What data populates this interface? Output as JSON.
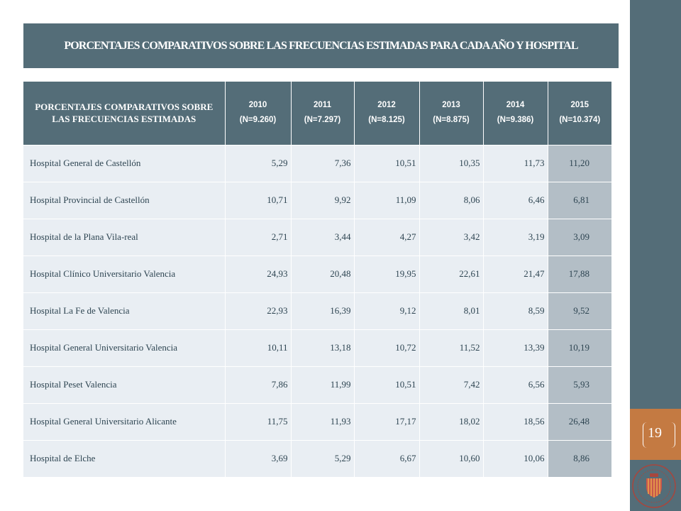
{
  "slide": {
    "title": "PORCENTAJES COMPARATIVOS SOBRE LAS FRECUENCIAS ESTIMADAS PARA CADA AÑO Y HOSPITAL",
    "page_number": "19"
  },
  "table": {
    "header_first": "PORCENTAJES COMPARATIVOS SOBRE LAS FRECUENCIAS ESTIMADAS",
    "years": [
      {
        "year": "2010",
        "n": "(N=9.260)"
      },
      {
        "year": "2011",
        "n": "(N=7.297)"
      },
      {
        "year": "2012",
        "n": "(N=8.125)"
      },
      {
        "year": "2013",
        "n": "(N=8.875)"
      },
      {
        "year": "2014",
        "n": "(N=9.386)"
      },
      {
        "year": "2015",
        "n": "(N=10.374)"
      }
    ],
    "rows": [
      {
        "hospital": "Hospital General de Castellón",
        "values": [
          "5,29",
          "7,36",
          "10,51",
          "10,35",
          "11,73",
          "11,20"
        ]
      },
      {
        "hospital": "Hospital Provincial de Castellón",
        "values": [
          "10,71",
          "9,92",
          "11,09",
          "8,06",
          "6,46",
          "6,81"
        ]
      },
      {
        "hospital": "Hospital de la Plana Vila-real",
        "values": [
          "2,71",
          "3,44",
          "4,27",
          "3,42",
          "3,19",
          "3,09"
        ]
      },
      {
        "hospital": "Hospital Clínico Universitario Valencia",
        "values": [
          "24,93",
          "20,48",
          "19,95",
          "22,61",
          "21,47",
          "17,88"
        ]
      },
      {
        "hospital": "Hospital La Fe de Valencia",
        "values": [
          "22,93",
          "16,39",
          "9,12",
          "8,01",
          "8,59",
          "9,52"
        ]
      },
      {
        "hospital": "Hospital General Universitario Valencia",
        "values": [
          "10,11",
          "13,18",
          "10,72",
          "11,52",
          "13,39",
          "10,19"
        ]
      },
      {
        "hospital": "Hospital Peset Valencia",
        "values": [
          "7,86",
          "11,99",
          "10,51",
          "7,42",
          "6,56",
          "5,93"
        ]
      },
      {
        "hospital": "Hospital General Universitario Alicante",
        "values": [
          "11,75",
          "11,93",
          "17,17",
          "18,02",
          "18,56",
          "26,48"
        ]
      },
      {
        "hospital": "Hospital de Elche",
        "values": [
          "3,69",
          "5,29",
          "6,67",
          "10,60",
          "10,06",
          "8,86"
        ]
      }
    ]
  },
  "colors": {
    "slate": "#546d78",
    "accent": "#c47a42",
    "cell": "#e9eef3",
    "last_column": "#b3bec6",
    "text": "#2e4552"
  },
  "icons": {
    "logo": "generalitat-valenciana-shield-icon"
  }
}
